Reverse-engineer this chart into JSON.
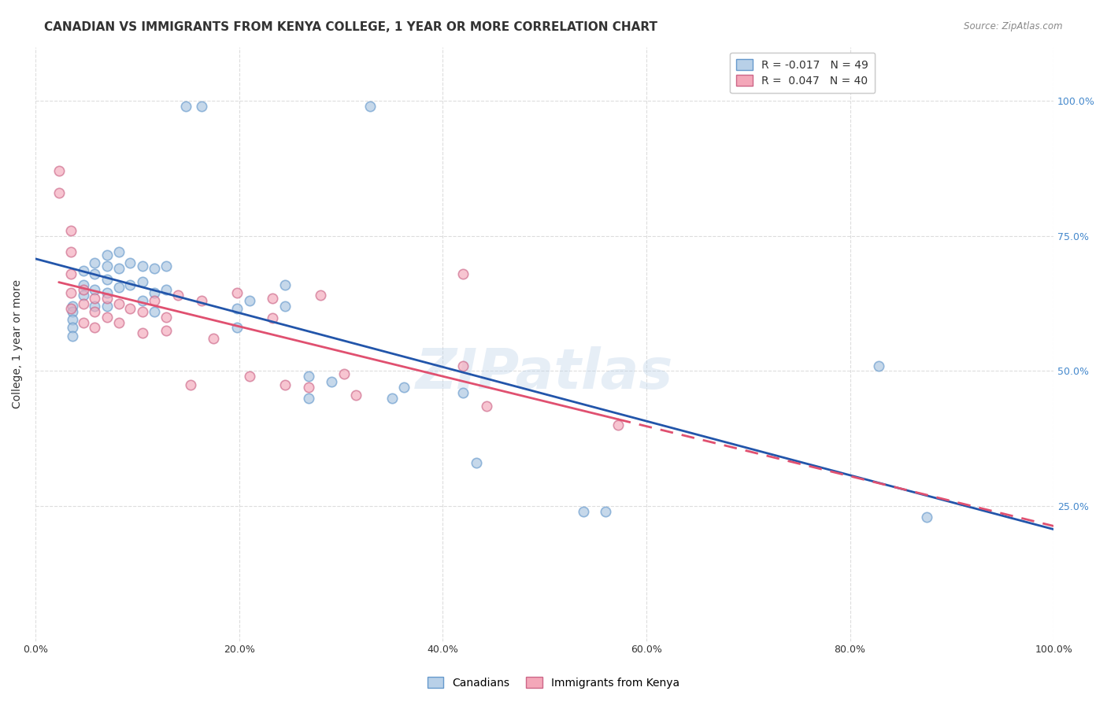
{
  "title": "CANADIAN VS IMMIGRANTS FROM KENYA COLLEGE, 1 YEAR OR MORE CORRELATION CHART",
  "source": "Source: ZipAtlas.com",
  "ylabel": "College, 1 year or more",
  "xlabel": "",
  "watermark": "ZIPatlas",
  "background_color": "#ffffff",
  "plot_bg_color": "#ffffff",
  "canadians_R": -0.017,
  "canadians_N": 49,
  "kenya_R": 0.047,
  "kenya_N": 40,
  "canadians_color": "#a8c4e0",
  "kenya_color": "#f4a7b9",
  "trendline_canadian_color": "#2255aa",
  "trendline_kenya_color": "#e05070",
  "canadians_x": [
    0.148,
    0.163,
    0.329,
    0.036,
    0.036,
    0.036,
    0.036,
    0.036,
    0.047,
    0.047,
    0.047,
    0.058,
    0.058,
    0.058,
    0.058,
    0.07,
    0.07,
    0.07,
    0.07,
    0.07,
    0.082,
    0.082,
    0.082,
    0.093,
    0.093,
    0.105,
    0.105,
    0.105,
    0.117,
    0.117,
    0.117,
    0.128,
    0.128,
    0.198,
    0.198,
    0.21,
    0.245,
    0.245,
    0.268,
    0.268,
    0.291,
    0.35,
    0.362,
    0.42,
    0.433,
    0.538,
    0.56,
    0.828,
    0.875
  ],
  "canadians_y": [
    0.99,
    0.99,
    0.99,
    0.62,
    0.61,
    0.595,
    0.58,
    0.565,
    0.685,
    0.66,
    0.64,
    0.7,
    0.68,
    0.65,
    0.62,
    0.715,
    0.695,
    0.67,
    0.645,
    0.62,
    0.72,
    0.69,
    0.655,
    0.7,
    0.66,
    0.695,
    0.665,
    0.63,
    0.69,
    0.645,
    0.61,
    0.695,
    0.65,
    0.615,
    0.58,
    0.63,
    0.66,
    0.62,
    0.49,
    0.45,
    0.48,
    0.45,
    0.47,
    0.46,
    0.33,
    0.24,
    0.24,
    0.51,
    0.23
  ],
  "kenya_x": [
    0.023,
    0.023,
    0.035,
    0.035,
    0.035,
    0.035,
    0.035,
    0.047,
    0.047,
    0.047,
    0.058,
    0.058,
    0.058,
    0.07,
    0.07,
    0.082,
    0.082,
    0.093,
    0.105,
    0.105,
    0.117,
    0.128,
    0.128,
    0.14,
    0.152,
    0.163,
    0.175,
    0.198,
    0.21,
    0.233,
    0.233,
    0.245,
    0.268,
    0.28,
    0.303,
    0.315,
    0.42,
    0.42,
    0.443,
    0.572
  ],
  "kenya_y": [
    0.87,
    0.83,
    0.76,
    0.72,
    0.68,
    0.645,
    0.615,
    0.65,
    0.625,
    0.59,
    0.635,
    0.61,
    0.58,
    0.635,
    0.6,
    0.625,
    0.59,
    0.615,
    0.61,
    0.57,
    0.63,
    0.6,
    0.575,
    0.64,
    0.475,
    0.63,
    0.56,
    0.645,
    0.49,
    0.635,
    0.598,
    0.475,
    0.47,
    0.64,
    0.495,
    0.455,
    0.68,
    0.51,
    0.435,
    0.4
  ],
  "xlim": [
    0.0,
    1.0
  ],
  "ylim": [
    0.0,
    1.1
  ],
  "xticks": [
    0.0,
    0.2,
    0.4,
    0.6,
    0.8,
    1.0
  ],
  "xtick_labels": [
    "0.0%",
    "20.0%",
    "40.0%",
    "60.0%",
    "80.0%",
    "100.0%"
  ],
  "ytick_labels_right": [
    "100.0%",
    "75.0%",
    "50.0%",
    "25.0%"
  ],
  "ytick_vals_right": [
    1.0,
    0.75,
    0.5,
    0.25
  ],
  "grid_color": "#dddddd",
  "title_fontsize": 11,
  "axis_label_fontsize": 10,
  "tick_fontsize": 9,
  "legend_box_color_canadian": "#b8d0e8",
  "legend_box_color_kenya": "#f4a7b9",
  "dot_size": 80,
  "dot_alpha": 0.65,
  "dot_linewidth": 1.2,
  "dot_edgecolor_canadian": "#6699cc",
  "dot_edgecolor_kenya": "#cc6688"
}
